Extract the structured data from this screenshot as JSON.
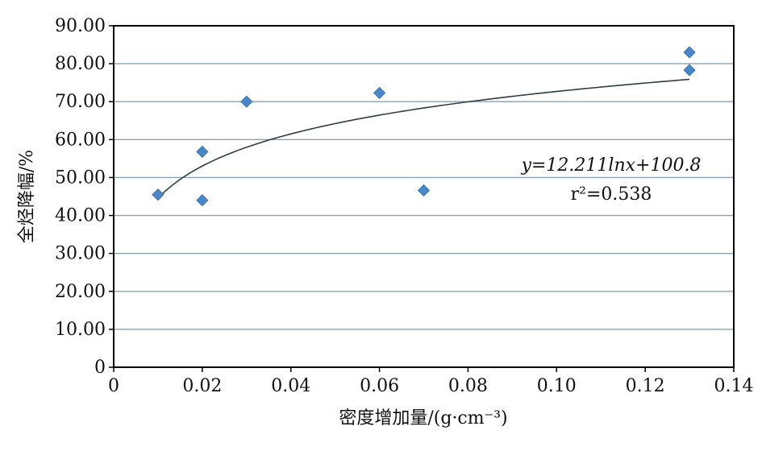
{
  "chart_data": {
    "type": "scatter",
    "title": "",
    "xlabel": "密度增加量/(g·cm⁻³)",
    "ylabel": "全烃降幅/%",
    "xlim": [
      0,
      0.14
    ],
    "ylim": [
      0,
      90
    ],
    "x_ticks": [
      "0",
      "0.02",
      "0.04",
      "0.06",
      "0.08",
      "0.10",
      "0.12",
      "0.14"
    ],
    "y_ticks": [
      "0",
      "10.00",
      "20.00",
      "30.00",
      "40.00",
      "50.00",
      "60.00",
      "70.00",
      "80.00",
      "90.00"
    ],
    "grid": "horizontal",
    "legend": "none",
    "series": [
      {
        "marker": "diamond",
        "color": "#4a86c8",
        "x": [
          0.01,
          0.02,
          0.02,
          0.03,
          0.06,
          0.07,
          0.13,
          0.13
        ],
        "y": [
          45.5,
          56.8,
          44.0,
          70.0,
          72.3,
          46.6,
          83.0,
          78.3
        ]
      }
    ],
    "trendline": {
      "type": "logarithmic",
      "a": 12.211,
      "b": 100.8,
      "x_start": 0.01,
      "x_end": 0.13,
      "color": "#2f3f3f"
    },
    "annotations": {
      "equation": "y=12.211lnx+100.8",
      "r2": "r²=0.538"
    }
  }
}
